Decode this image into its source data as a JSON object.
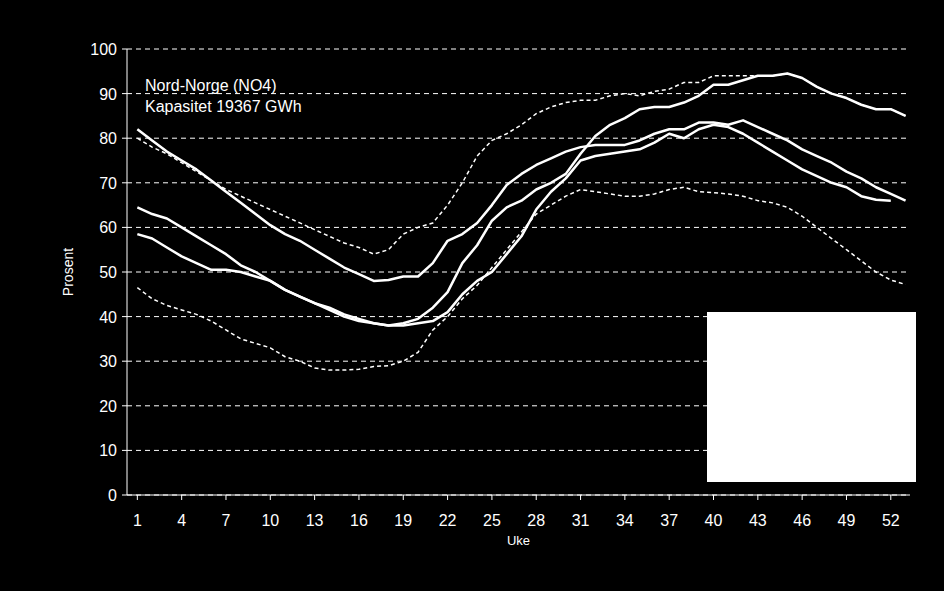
{
  "chart_data": {
    "type": "line",
    "title": "Nord-Norge (NO4)",
    "subtitle": "Kapasitet 19367 GWh",
    "x_label": "Uke",
    "y_label": "Prosent",
    "x": [
      1,
      2,
      3,
      4,
      5,
      6,
      7,
      8,
      9,
      10,
      11,
      12,
      13,
      14,
      15,
      16,
      17,
      18,
      19,
      20,
      21,
      22,
      23,
      24,
      25,
      26,
      27,
      28,
      29,
      30,
      31,
      32,
      33,
      34,
      35,
      36,
      37,
      38,
      39,
      40,
      41,
      42,
      43,
      44,
      45,
      46,
      47,
      48,
      49,
      50,
      51,
      52,
      53
    ],
    "xlim": [
      0.3,
      53.3
    ],
    "xticks": [
      1,
      4,
      7,
      10,
      13,
      16,
      19,
      22,
      25,
      28,
      31,
      34,
      37,
      40,
      43,
      46,
      49,
      52
    ],
    "ylim": [
      0,
      100
    ],
    "yticks": [
      0,
      10,
      20,
      30,
      40,
      50,
      60,
      70,
      80,
      90,
      100
    ],
    "grid": true,
    "series": [
      {
        "color": "#ffffff",
        "line_style": "dashed",
        "values": [
          80,
          78,
          76.5,
          74.5,
          72.5,
          70.5,
          68.5,
          67,
          65.5,
          64,
          62.5,
          61,
          59.5,
          58,
          56.5,
          55.5,
          54,
          55,
          58.5,
          60,
          61,
          65,
          70,
          76,
          79.5,
          81,
          83,
          85.5,
          87,
          88,
          88.5,
          88.5,
          89.5,
          90,
          89.5,
          90.5,
          91,
          92.5,
          92.5,
          94,
          94,
          94,
          94,
          94,
          94.5,
          93.5,
          91.5,
          90,
          89,
          87.5,
          86.5,
          86.5,
          85
        ]
      },
      {
        "color": "#ffffff",
        "line_style": "dashed",
        "values": [
          46.5,
          44,
          42.5,
          41.5,
          40.5,
          39,
          37,
          35,
          34,
          33,
          31,
          30,
          28.5,
          28,
          28,
          28.2,
          28.8,
          29,
          30,
          32,
          37,
          40,
          44,
          47,
          51,
          55,
          59,
          63,
          65,
          67,
          68.5,
          68,
          67.5,
          67,
          67,
          67.5,
          68.5,
          69,
          68,
          67.8,
          67.5,
          67,
          66,
          65.5,
          64.5,
          62.5,
          60,
          57.5,
          55,
          52.5,
          50,
          48.2,
          47.2
        ]
      },
      {
        "color": "#ffffff",
        "line_style": "solid",
        "values": [
          82,
          79.5,
          77,
          75,
          73,
          70.5,
          68,
          65.5,
          63,
          60.5,
          58.5,
          57,
          55,
          53,
          51,
          49.5,
          48,
          48.2,
          49,
          49,
          52,
          57,
          58.5,
          61,
          65,
          69.5,
          72,
          74,
          75.5,
          77,
          78,
          78.5,
          78.5,
          78.5,
          79.5,
          81,
          82,
          82,
          83.5,
          83.5,
          83,
          84,
          82.5,
          81,
          79.5,
          77.5,
          76,
          74.5,
          72.5,
          71,
          69,
          67.5,
          66
        ]
      },
      {
        "color": "#ffffff",
        "line_style": "solid",
        "values": [
          64.5,
          63,
          62,
          60,
          58,
          56,
          54,
          51.5,
          50,
          48,
          46,
          44.5,
          43,
          42,
          40.5,
          39.5,
          38.5,
          38,
          38.5,
          39.5,
          42,
          45.5,
          52,
          56,
          61.5,
          64.5,
          66,
          68.5,
          70,
          72,
          76.5,
          80.5,
          83,
          84.5,
          86.5,
          87,
          87,
          88,
          89.5,
          92,
          92,
          93,
          94,
          94,
          94.5,
          93.5,
          91.5,
          90,
          89,
          87.5,
          86.5,
          86.5,
          85
        ]
      },
      {
        "color": "#ffffff",
        "line_style": "solid",
        "values": [
          58.5,
          57.5,
          55.5,
          53.5,
          52,
          50.5,
          50.5,
          50,
          49,
          48,
          46,
          44.5,
          43,
          41.5,
          40,
          39,
          38.5,
          38,
          38,
          38.5,
          39,
          41,
          45,
          48,
          50,
          54,
          58,
          64,
          68,
          71,
          75,
          76,
          76.5,
          77,
          77.5,
          79,
          81,
          80,
          82,
          83,
          82.5,
          81,
          79,
          77,
          75,
          73,
          71.5,
          70,
          69,
          67,
          66.2,
          66,
          null
        ]
      }
    ]
  }
}
